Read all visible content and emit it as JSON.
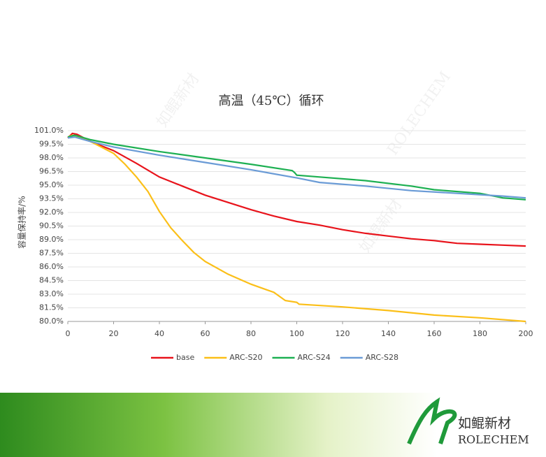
{
  "chart_data": {
    "type": "line",
    "title": "高温（45℃）循环",
    "y_label": "容量保持率/%",
    "xlim": [
      0,
      200
    ],
    "xticks": [
      0,
      20,
      40,
      60,
      80,
      100,
      120,
      140,
      160,
      180,
      200
    ],
    "ylim": [
      80,
      101
    ],
    "yticks": [
      {
        "value": 80,
        "label": "80.0%"
      },
      {
        "value": 81.5,
        "label": "81.5%"
      },
      {
        "value": 83,
        "label": "83.0%"
      },
      {
        "value": 84.5,
        "label": "84.5%"
      },
      {
        "value": 86,
        "label": "86.0%"
      },
      {
        "value": 87.5,
        "label": "87.5%"
      },
      {
        "value": 89,
        "label": "89.0%"
      },
      {
        "value": 90.5,
        "label": "90.5%"
      },
      {
        "value": 92,
        "label": "92.0%"
      },
      {
        "value": 93.5,
        "label": "93.5%"
      },
      {
        "value": 95,
        "label": "95.0%"
      },
      {
        "value": 96.5,
        "label": "96.5%"
      },
      {
        "value": 98,
        "label": "98.0%"
      },
      {
        "value": 99.5,
        "label": "99.5%"
      },
      {
        "value": 101,
        "label": "101.0%"
      }
    ],
    "legend": "bottom",
    "series": [
      {
        "name": "base",
        "color": "#e8131b",
        "x": [
          0,
          2,
          4,
          10,
          20,
          30,
          40,
          50,
          60,
          70,
          80,
          90,
          100,
          110,
          120,
          130,
          140,
          150,
          160,
          170,
          180,
          190,
          200
        ],
        "values": [
          100.2,
          100.7,
          100.6,
          99.8,
          98.8,
          97.4,
          95.9,
          94.9,
          93.9,
          93.1,
          92.3,
          91.6,
          91.0,
          90.6,
          90.1,
          89.7,
          89.4,
          89.1,
          88.9,
          88.6,
          88.5,
          88.4,
          88.3
        ]
      },
      {
        "name": "ARC-S20",
        "color": "#fbbf18",
        "x": [
          0,
          2,
          10,
          20,
          25,
          30,
          35,
          40,
          45,
          50,
          55,
          60,
          70,
          80,
          90,
          95,
          100,
          101,
          120,
          140,
          160,
          180,
          200
        ],
        "values": [
          100.3,
          100.5,
          99.8,
          98.5,
          97.3,
          95.9,
          94.3,
          92.1,
          90.3,
          88.9,
          87.6,
          86.6,
          85.2,
          84.1,
          83.2,
          82.3,
          82.1,
          81.9,
          81.6,
          81.2,
          80.7,
          80.4,
          80.0
        ]
      },
      {
        "name": "ARC-S24",
        "color": "#1db052",
        "x": [
          0,
          3,
          10,
          20,
          40,
          60,
          80,
          98,
          99,
          100,
          110,
          130,
          150,
          160,
          180,
          190,
          200
        ],
        "values": [
          100.3,
          100.5,
          100.0,
          99.5,
          98.7,
          98.0,
          97.3,
          96.6,
          96.4,
          96.1,
          95.9,
          95.5,
          94.9,
          94.5,
          94.1,
          93.6,
          93.4
        ]
      },
      {
        "name": "ARC-S28",
        "color": "#6a9bd6",
        "x": [
          0,
          3,
          10,
          20,
          40,
          60,
          80,
          100,
          110,
          130,
          150,
          170,
          190,
          200
        ],
        "values": [
          100.2,
          100.3,
          99.8,
          99.2,
          98.3,
          97.5,
          96.7,
          95.8,
          95.3,
          94.9,
          94.4,
          94.1,
          93.8,
          93.6
        ]
      }
    ]
  },
  "footer": {
    "brand_cn": "如鲲新材",
    "brand_en": "ROLECHEM"
  }
}
